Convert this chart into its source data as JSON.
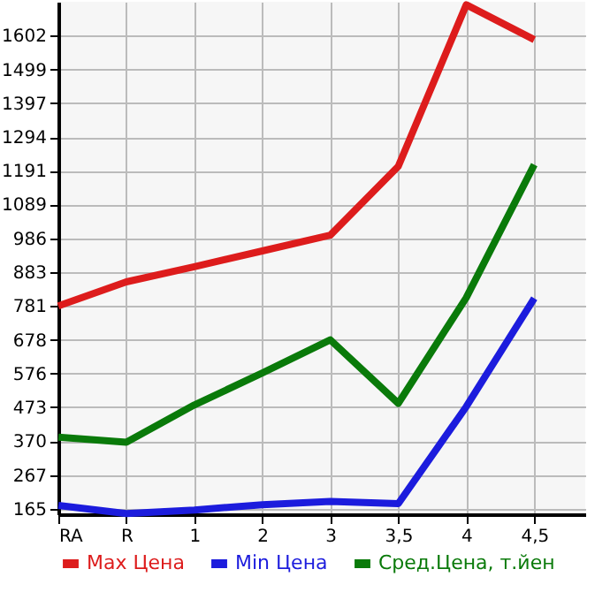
{
  "chart_data": {
    "type": "line",
    "categories": [
      "RA",
      "R",
      "1",
      "2",
      "3",
      "3,5",
      "4",
      "4,5"
    ],
    "series": [
      {
        "name": "Max Цена",
        "color": "#dd1c1c",
        "values": [
          781,
          854,
          900,
          948,
          996,
          1205,
          1696,
          1590
        ]
      },
      {
        "name": "Min Цена",
        "color": "#1c1cdd",
        "values": [
          175,
          150,
          161,
          177,
          187,
          180,
          475,
          804
        ]
      },
      {
        "name": "Сред.Цена, т.йен",
        "color": "#0a7a0a",
        "values": [
          382,
          367,
          480,
          577,
          678,
          485,
          806,
          1210
        ]
      }
    ],
    "ylim": [
      148,
      1705
    ],
    "yticks": [
      165,
      267,
      370,
      473,
      576,
      678,
      781,
      883,
      986,
      1089,
      1191,
      1294,
      1397,
      1499,
      1602
    ],
    "grid": true,
    "legend": "bottom",
    "marker": "none",
    "line_style": "solid"
  }
}
